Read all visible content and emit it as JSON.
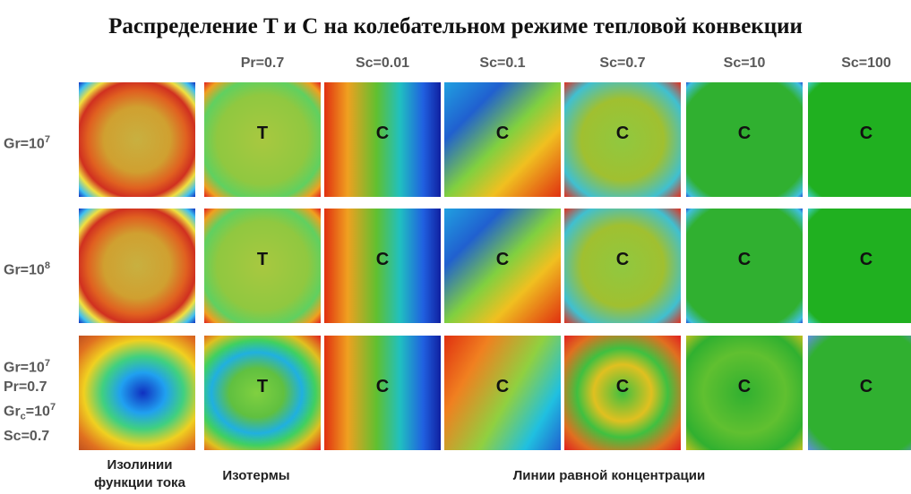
{
  "header": {
    "title": "Распределение T и C на колебательном режиме тепловой конвекции",
    "columns": [
      "Pr=0.7",
      "Sc=0.01",
      "Sc=0.1",
      "Sc=0.7",
      "Sc=10",
      "Sc=100"
    ]
  },
  "rows": [
    {
      "label": [
        [
          {
            "text": "Gr=10"
          },
          {
            "text": "7",
            "style": "sup"
          }
        ]
      ],
      "labels": [
        "T",
        "C",
        "C",
        "C",
        "C",
        "C"
      ]
    },
    {
      "label": [
        [
          {
            "text": "Gr=10"
          },
          {
            "text": "8",
            "style": "sup"
          }
        ]
      ],
      "labels": [
        "T",
        "C",
        "C",
        "C",
        "C",
        "C"
      ]
    },
    {
      "label": [
        [
          {
            "text": "Gr=10"
          },
          {
            "text": "7",
            "style": "sup"
          }
        ],
        [
          {
            "text": "Pr=0.7"
          }
        ],
        [
          {
            "text": "Gr"
          },
          {
            "text": "c",
            "style": "sub"
          },
          {
            "text": "=10"
          },
          {
            "text": "7",
            "style": "sup"
          }
        ],
        [
          {
            "text": "Sc=0.7"
          }
        ]
      ],
      "labels": [
        "T",
        "C",
        "C",
        "C",
        "C",
        "C"
      ]
    }
  ],
  "footer": {
    "captions": [
      [
        "Изолинии",
        "функции тока"
      ],
      [
        "Изотермы"
      ],
      [
        "Линии равной концентрации"
      ]
    ]
  }
}
